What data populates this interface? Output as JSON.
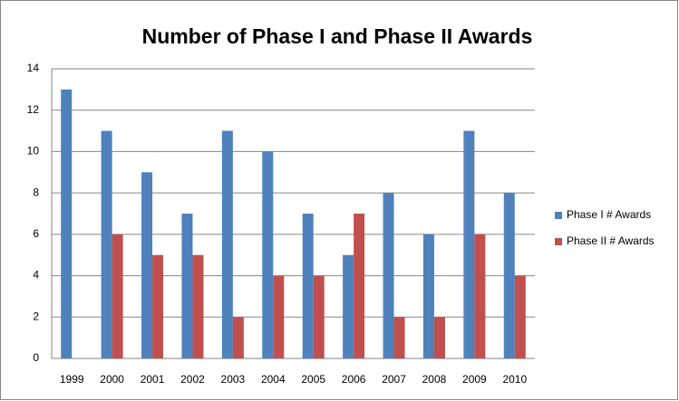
{
  "chart_data": {
    "type": "bar",
    "title": "Number of Phase I and Phase II Awards",
    "categories": [
      "1999",
      "2000",
      "2001",
      "2002",
      "2003",
      "2004",
      "2005",
      "2006",
      "2007",
      "2008",
      "2009",
      "2010"
    ],
    "series": [
      {
        "name": "Phase I # Awards",
        "color": "#4f81bd",
        "values": [
          13,
          11,
          9,
          7,
          11,
          10,
          7,
          5,
          8,
          6,
          11,
          8
        ]
      },
      {
        "name": "Phase II # Awards",
        "color": "#c0504d",
        "values": [
          0,
          6,
          5,
          5,
          2,
          4,
          4,
          7,
          2,
          2,
          6,
          4
        ]
      }
    ],
    "ylim": [
      0,
      14
    ],
    "yticks": [
      0,
      2,
      4,
      6,
      8,
      10,
      12,
      14
    ],
    "grid": true,
    "legend": "right"
  }
}
